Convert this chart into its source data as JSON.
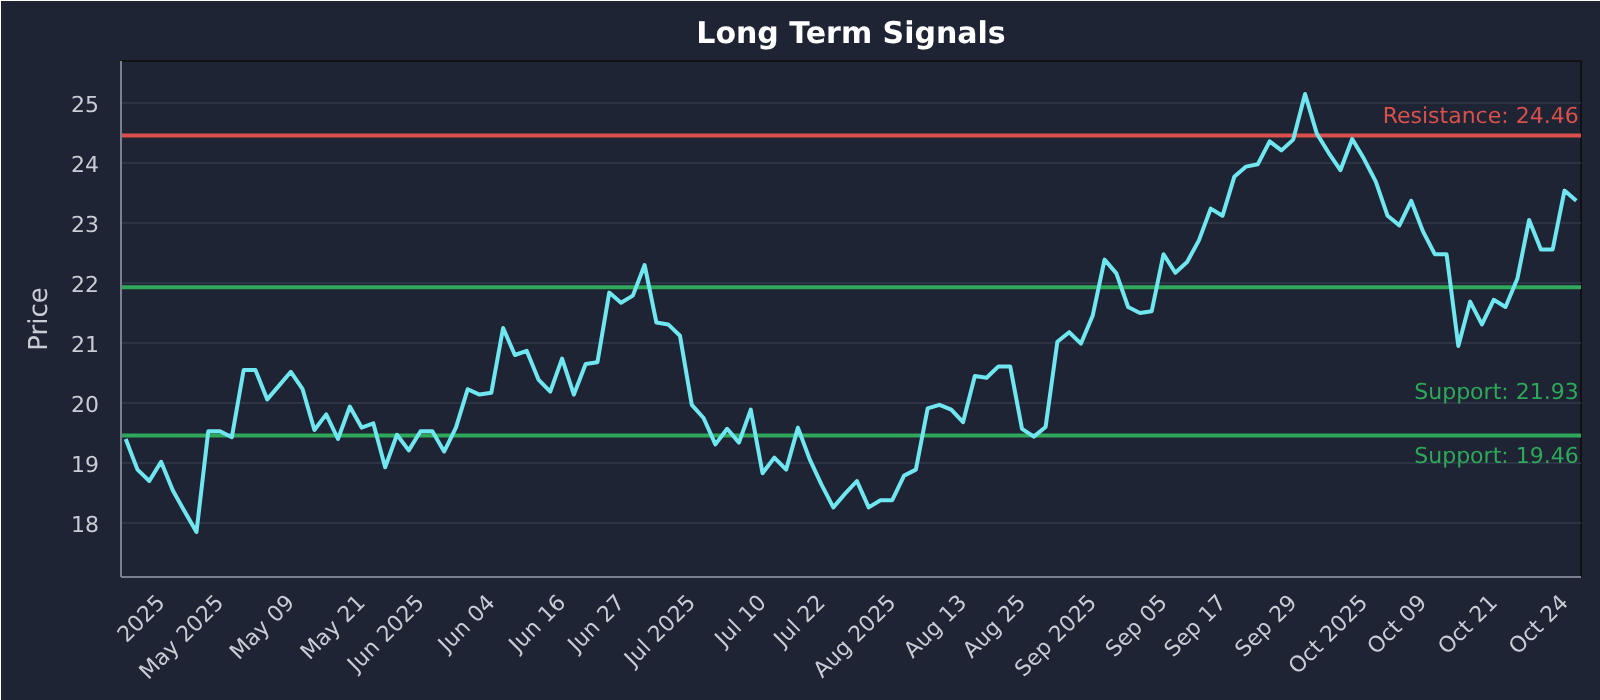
{
  "chart_data": {
    "type": "line",
    "title": "Long Term Signals",
    "ylabel": "Price",
    "categories": [
      null,
      null,
      null,
      "2025",
      null,
      null,
      null,
      null,
      "May 2025",
      null,
      null,
      null,
      null,
      null,
      "May 09",
      null,
      null,
      null,
      null,
      null,
      "May 21",
      null,
      null,
      null,
      null,
      "Jun 2025",
      null,
      null,
      null,
      null,
      null,
      "Jun 04",
      null,
      null,
      null,
      null,
      null,
      "Jun 16",
      null,
      null,
      null,
      null,
      "Jun 27",
      null,
      null,
      null,
      null,
      null,
      "Jul 2025",
      null,
      null,
      null,
      null,
      null,
      "Jul 10",
      null,
      null,
      null,
      null,
      "Jul 22",
      null,
      null,
      null,
      null,
      null,
      "Aug 2025",
      null,
      null,
      null,
      null,
      null,
      "Aug 13",
      null,
      null,
      null,
      null,
      "Aug 25",
      null,
      null,
      null,
      null,
      null,
      "Sep 2025",
      null,
      null,
      null,
      null,
      null,
      "Sep 05",
      null,
      null,
      null,
      null,
      "Sep 17",
      null,
      null,
      null,
      null,
      null,
      "Sep 29",
      null,
      null,
      null,
      null,
      null,
      "Oct 2025",
      null,
      null,
      null,
      null,
      "Oct 09",
      null,
      null,
      null,
      null,
      null,
      "Oct 21",
      null,
      null,
      null,
      null,
      null,
      "Oct 24",
      null
    ],
    "series": [
      {
        "color": "#6fe6f0",
        "values": [
          19.4,
          18.89,
          18.7,
          19.02,
          18.54,
          18.19,
          17.85,
          19.53,
          19.53,
          19.43,
          20.55,
          20.55,
          20.06,
          20.29,
          20.52,
          20.23,
          19.55,
          19.81,
          19.4,
          19.94,
          19.59,
          19.66,
          18.93,
          19.47,
          19.21,
          19.53,
          19.53,
          19.19,
          19.59,
          20.23,
          20.14,
          20.17,
          21.25,
          20.8,
          20.87,
          20.39,
          20.19,
          20.74,
          20.14,
          20.65,
          20.68,
          21.84,
          21.67,
          21.79,
          22.3,
          21.34,
          21.31,
          21.12,
          19.97,
          19.75,
          19.31,
          19.57,
          19.34,
          19.89,
          18.83,
          19.09,
          18.89,
          19.59,
          19.06,
          18.64,
          18.26,
          18.49,
          18.7,
          18.26,
          18.38,
          18.38,
          18.79,
          18.89,
          19.91,
          19.97,
          19.89,
          19.68,
          20.45,
          20.42,
          20.61,
          20.61,
          19.57,
          19.44,
          19.6,
          21.02,
          21.18,
          20.99,
          21.46,
          22.39,
          22.16,
          21.6,
          21.5,
          21.53,
          22.48,
          22.17,
          22.35,
          22.71,
          23.24,
          23.12,
          23.77,
          23.94,
          23.98,
          24.36,
          24.21,
          24.39,
          25.15,
          24.49,
          24.17,
          23.88,
          24.4,
          24.07,
          23.69,
          23.12,
          22.96,
          23.37,
          22.86,
          22.48,
          22.48,
          20.95,
          21.69,
          21.31,
          21.72,
          21.6,
          22.07,
          23.05,
          22.56,
          22.56,
          23.54,
          23.37
        ]
      }
    ],
    "ylim": [
      17.1,
      25.7
    ],
    "yticks": [
      18,
      19,
      20,
      21,
      22,
      23,
      24,
      25
    ],
    "grid": "y",
    "ref_lines": [
      {
        "axis": "y",
        "value": 24.46,
        "label": "Resistance: 24.46",
        "color": "#d9504c"
      },
      {
        "axis": "y",
        "value": 21.93,
        "label": "Support: 21.93",
        "color": "#2fa85a"
      },
      {
        "axis": "y",
        "value": 19.46,
        "label": "Support: 19.46",
        "color": "#2fa85a"
      }
    ]
  }
}
